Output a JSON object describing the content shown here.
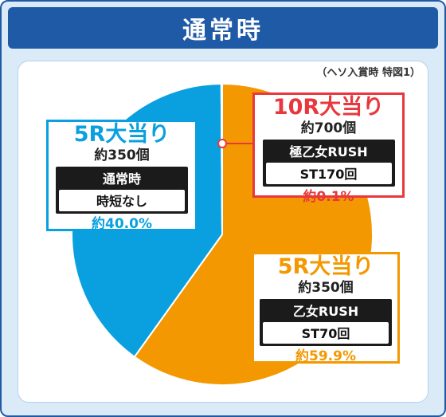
{
  "header": {
    "title": "通常時"
  },
  "note": "（ヘソ入賞時 特図1）",
  "colors": {
    "blue": "#0aa0e0",
    "orange": "#f39800",
    "red": "#e8383d",
    "navy": "#1f5aa6"
  },
  "chart_data": {
    "type": "pie",
    "title": "通常時",
    "slices": [
      {
        "label": "5R大当り",
        "balls": "約350個",
        "mode": "乙女RUSH",
        "mode_detail": "ST70回",
        "percent_label": "約59.9%",
        "value": 59.9,
        "color": "#f39800"
      },
      {
        "label": "5R大当り",
        "balls": "約350個",
        "mode": "通常時",
        "mode_detail": "時短なし",
        "percent_label": "約40.0%",
        "value": 40.0,
        "color": "#0aa0e0"
      },
      {
        "label": "10R大当り",
        "balls": "約700個",
        "mode": "極乙女RUSH",
        "mode_detail": "ST170回",
        "percent_label": "約0.1%",
        "value": 0.1,
        "color": "#e8383d"
      }
    ]
  }
}
